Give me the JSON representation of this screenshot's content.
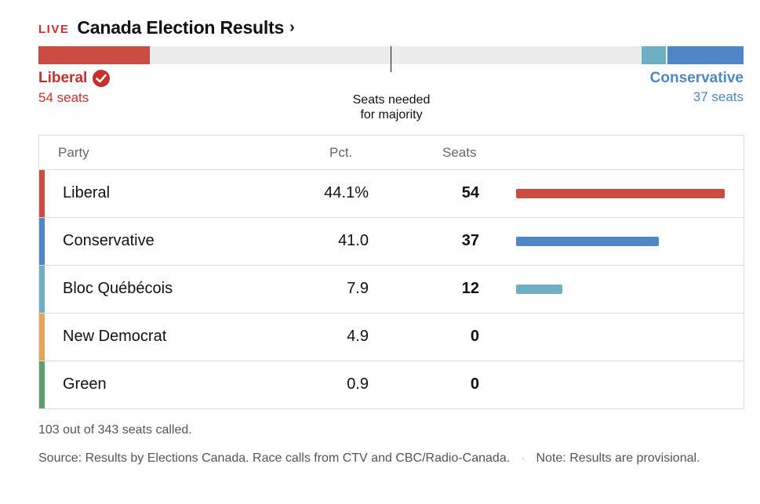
{
  "header": {
    "live": "LIVE",
    "title": "Canada Election Results",
    "chevron": "›"
  },
  "colors": {
    "liberal": "#cc4b42",
    "conservative": "#4f86c6",
    "bloc": "#6fafc4",
    "ndp": "#e2a55b",
    "green": "#5f9e6e"
  },
  "majority": {
    "label_line1": "Seats needed",
    "label_line2": "for majority"
  },
  "leader": {
    "name": "Liberal",
    "seats": "54 seats",
    "icon": "check-circle-icon"
  },
  "second": {
    "name": "Conservative",
    "seats": "37 seats"
  },
  "table": {
    "headers": {
      "party": "Party",
      "pct": "Pct.",
      "seats": "Seats"
    },
    "rows": [
      {
        "party": "Liberal",
        "pct": "44.1%",
        "seats": "54",
        "seat_value": 54,
        "color": "#cc4b42"
      },
      {
        "party": "Conservative",
        "pct": "41.0",
        "seats": "37",
        "seat_value": 37,
        "color": "#4f86c6"
      },
      {
        "party": "Bloc Québécois",
        "pct": "7.9",
        "seats": "12",
        "seat_value": 12,
        "color": "#6fafc4"
      },
      {
        "party": "New Democrat",
        "pct": "4.9",
        "seats": "0",
        "seat_value": 0,
        "color": "#e2a55b"
      },
      {
        "party": "Green",
        "pct": "0.9",
        "seats": "0",
        "seat_value": 0,
        "color": "#5f9e6e"
      }
    ]
  },
  "footer": {
    "called": "103 out of 343 seats called.",
    "source": "Source: Results by Elections Canada. Race calls from CTV and CBC/Radio-Canada.",
    "note": "Note: Results are provisional."
  }
}
